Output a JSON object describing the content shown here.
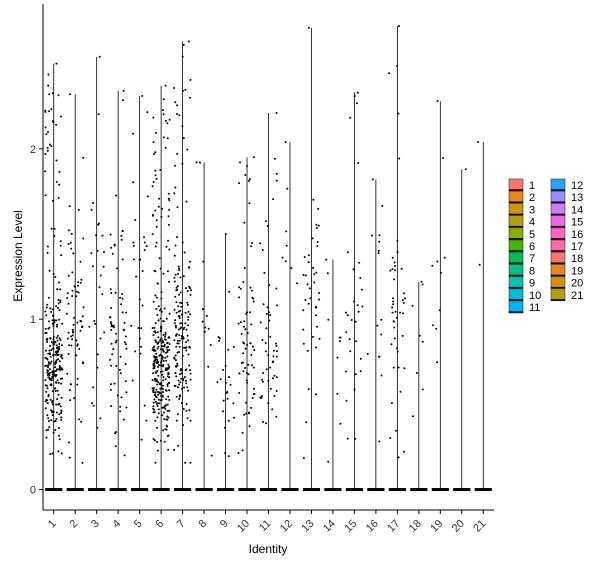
{
  "chart_data": {
    "type": "violin-jitter",
    "xlabel": "Identity",
    "ylabel": "Expression Level",
    "categories": [
      "1",
      "2",
      "3",
      "4",
      "5",
      "6",
      "7",
      "8",
      "9",
      "10",
      "11",
      "12",
      "13",
      "14",
      "15",
      "16",
      "17",
      "18",
      "19",
      "20",
      "21"
    ],
    "ylim": [
      -0.12,
      2.85
    ],
    "yticks": [
      0,
      1,
      2
    ],
    "grid": false,
    "legend": {
      "placement": "right",
      "columns": 2
    },
    "colors": [
      "#F8766D",
      "#E7851E",
      "#D09400",
      "#B2A100",
      "#89AC00",
      "#45B500",
      "#00BC51",
      "#00C087",
      "#00C0B2",
      "#00BCD6",
      "#00B3F2",
      "#29A3FF",
      "#9C8DFF",
      "#D277FF",
      "#F166E8",
      "#FF61C7",
      "#FF68A0",
      "#F8766D",
      "#E7851E",
      "#D09400",
      "#B2A100"
    ],
    "series": [
      {
        "name": "1",
        "max": 2.5,
        "nonzero": 260,
        "mean": 0.65
      },
      {
        "name": "2",
        "max": 2.32,
        "nonzero": 70,
        "mean": 0.9
      },
      {
        "name": "3",
        "max": 2.54,
        "nonzero": 28,
        "mean": 1.0
      },
      {
        "name": "4",
        "max": 2.34,
        "nonzero": 70,
        "mean": 0.9
      },
      {
        "name": "5",
        "max": 2.31,
        "nonzero": 30,
        "mean": 1.1
      },
      {
        "name": "6",
        "max": 2.37,
        "nonzero": 300,
        "mean": 0.6
      },
      {
        "name": "7",
        "max": 2.63,
        "nonzero": 170,
        "mean": 0.8
      },
      {
        "name": "8",
        "max": 1.92,
        "nonzero": 12,
        "mean": 0.8
      },
      {
        "name": "9",
        "max": 1.5,
        "nonzero": 25,
        "mean": 0.6
      },
      {
        "name": "10",
        "max": 1.95,
        "nonzero": 70,
        "mean": 0.7
      },
      {
        "name": "11",
        "max": 2.21,
        "nonzero": 55,
        "mean": 0.8
      },
      {
        "name": "12",
        "max": 2.04,
        "nonzero": 8,
        "mean": 1.2
      },
      {
        "name": "13",
        "max": 2.71,
        "nonzero": 40,
        "mean": 1.0
      },
      {
        "name": "14",
        "max": 1.35,
        "nonzero": 10,
        "mean": 0.8
      },
      {
        "name": "15",
        "max": 2.33,
        "nonzero": 30,
        "mean": 1.0
      },
      {
        "name": "16",
        "max": 1.82,
        "nonzero": 15,
        "mean": 0.9
      },
      {
        "name": "17",
        "max": 2.72,
        "nonzero": 45,
        "mean": 0.9
      },
      {
        "name": "18",
        "max": 1.22,
        "nonzero": 8,
        "mean": 0.7
      },
      {
        "name": "19",
        "max": 2.28,
        "nonzero": 10,
        "mean": 1.0
      },
      {
        "name": "20",
        "max": 1.88,
        "nonzero": 1,
        "mean": 1.88
      },
      {
        "name": "21",
        "max": 2.04,
        "nonzero": 2,
        "mean": 2.0
      }
    ]
  }
}
